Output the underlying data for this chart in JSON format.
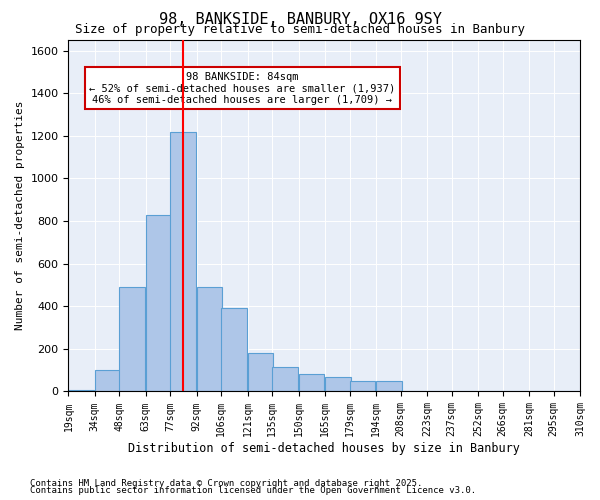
{
  "title": "98, BANKSIDE, BANBURY, OX16 9SY",
  "subtitle": "Size of property relative to semi-detached houses in Banbury",
  "xlabel": "Distribution of semi-detached houses by size in Banbury",
  "ylabel": "Number of semi-detached properties",
  "property_size": 84,
  "property_label": "98 BANKSIDE: 84sqm",
  "pct_smaller": 52,
  "n_smaller": 1937,
  "pct_larger": 46,
  "n_larger": 1709,
  "bin_labels": [
    "19sqm",
    "34sqm",
    "48sqm",
    "63sqm",
    "77sqm",
    "92sqm",
    "106sqm",
    "121sqm",
    "135sqm",
    "150sqm",
    "165sqm",
    "179sqm",
    "194sqm",
    "208sqm",
    "223sqm",
    "237sqm",
    "252sqm",
    "266sqm",
    "281sqm",
    "295sqm",
    "310sqm"
  ],
  "bin_edges": [
    19,
    34,
    48,
    63,
    77,
    92,
    106,
    121,
    135,
    150,
    165,
    179,
    194,
    208,
    223,
    237,
    252,
    266,
    281,
    295,
    310
  ],
  "bar_heights": [
    5,
    100,
    490,
    830,
    1220,
    490,
    390,
    180,
    115,
    80,
    70,
    50,
    50,
    0,
    0,
    0,
    0,
    0,
    0,
    0
  ],
  "bar_color": "#aec6e8",
  "bar_edge_color": "#5a9fd4",
  "redline_x": 84,
  "ylim": [
    0,
    1650
  ],
  "yticks": [
    0,
    200,
    400,
    600,
    800,
    1000,
    1200,
    1400,
    1600
  ],
  "bg_color": "#e8eef8",
  "annotation_box_color": "#cc0000",
  "footnote1": "Contains HM Land Registry data © Crown copyright and database right 2025.",
  "footnote2": "Contains public sector information licensed under the Open Government Licence v3.0."
}
